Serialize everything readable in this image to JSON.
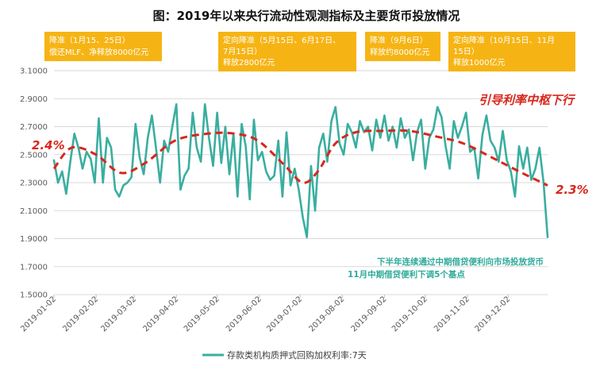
{
  "chart_data": {
    "type": "line",
    "title": "图：2019年以来央行流动性观测指标及主要货币投放情况",
    "ylim": [
      1.5,
      3.1
    ],
    "yticks": [
      "3.1000",
      "2.9000",
      "2.7000",
      "2.5000",
      "2.3000",
      "2.1000",
      "1.9000",
      "1.7000",
      "1.5000"
    ],
    "xticks": [
      "2019-01-02",
      "2019-02-02",
      "2019-03-02",
      "2019-04-02",
      "2019-05-02",
      "2019-06-02",
      "2019-07-02",
      "2019-08-02",
      "2019-09-02",
      "2019-10-02",
      "2019-11-02",
      "2019-12-02"
    ],
    "grid": true,
    "legend": {
      "position": "bottom",
      "label": "存款类机构质押式回购加权利率:7天"
    },
    "series": [
      {
        "name": "存款类机构质押式回购加权利率:7天",
        "color": "#3aaea0",
        "x": [
          "2019-01-02",
          "2019-01-05",
          "2019-01-08",
          "2019-01-11",
          "2019-01-14",
          "2019-01-17",
          "2019-01-20",
          "2019-01-23",
          "2019-01-26",
          "2019-01-29",
          "2019-02-01",
          "2019-02-04",
          "2019-02-07",
          "2019-02-10",
          "2019-02-13",
          "2019-02-16",
          "2019-02-19",
          "2019-02-22",
          "2019-02-25",
          "2019-02-28",
          "2019-03-03",
          "2019-03-06",
          "2019-03-09",
          "2019-03-12",
          "2019-03-15",
          "2019-03-18",
          "2019-03-21",
          "2019-03-24",
          "2019-03-27",
          "2019-03-30",
          "2019-04-02",
          "2019-04-05",
          "2019-04-08",
          "2019-04-11",
          "2019-04-14",
          "2019-04-17",
          "2019-04-20",
          "2019-04-23",
          "2019-04-26",
          "2019-04-29",
          "2019-05-02",
          "2019-05-05",
          "2019-05-08",
          "2019-05-11",
          "2019-05-14",
          "2019-05-17",
          "2019-05-20",
          "2019-05-23",
          "2019-05-26",
          "2019-05-29",
          "2019-06-01",
          "2019-06-04",
          "2019-06-07",
          "2019-06-10",
          "2019-06-13",
          "2019-06-16",
          "2019-06-19",
          "2019-06-22",
          "2019-06-25",
          "2019-06-28",
          "2019-07-01",
          "2019-07-04",
          "2019-07-07",
          "2019-07-10",
          "2019-07-13",
          "2019-07-16",
          "2019-07-19",
          "2019-07-22",
          "2019-07-25",
          "2019-07-28",
          "2019-07-31",
          "2019-08-03",
          "2019-08-06",
          "2019-08-09",
          "2019-08-12",
          "2019-08-15",
          "2019-08-18",
          "2019-08-21",
          "2019-08-24",
          "2019-08-27",
          "2019-08-30",
          "2019-09-02",
          "2019-09-05",
          "2019-09-08",
          "2019-09-11",
          "2019-09-14",
          "2019-09-17",
          "2019-09-20",
          "2019-09-23",
          "2019-09-26",
          "2019-09-29",
          "2019-10-02",
          "2019-10-05",
          "2019-10-08",
          "2019-10-11",
          "2019-10-14",
          "2019-10-17",
          "2019-10-20",
          "2019-10-23",
          "2019-10-26",
          "2019-10-29",
          "2019-11-01",
          "2019-11-04",
          "2019-11-07",
          "2019-11-10",
          "2019-11-13",
          "2019-11-16",
          "2019-11-19",
          "2019-11-22",
          "2019-11-25",
          "2019-11-28",
          "2019-12-01",
          "2019-12-04",
          "2019-12-07",
          "2019-12-10",
          "2019-12-13",
          "2019-12-16",
          "2019-12-19",
          "2019-12-22",
          "2019-12-25",
          "2019-12-28",
          "2019-12-31"
        ],
        "values": [
          2.46,
          2.3,
          2.38,
          2.22,
          2.45,
          2.65,
          2.55,
          2.4,
          2.52,
          2.47,
          2.3,
          2.76,
          2.3,
          2.62,
          2.55,
          2.25,
          2.2,
          2.28,
          2.3,
          2.34,
          2.72,
          2.48,
          2.36,
          2.62,
          2.78,
          2.55,
          2.3,
          2.6,
          2.52,
          2.7,
          2.86,
          2.25,
          2.35,
          2.4,
          2.8,
          2.55,
          2.45,
          2.86,
          2.62,
          2.42,
          2.8,
          2.44,
          2.7,
          2.36,
          2.65,
          2.2,
          2.72,
          2.56,
          2.18,
          2.75,
          2.46,
          2.52,
          2.38,
          2.32,
          2.35,
          2.6,
          2.2,
          2.66,
          2.28,
          2.4,
          2.25,
          2.05,
          1.91,
          2.42,
          2.1,
          2.55,
          2.65,
          2.45,
          2.74,
          2.84,
          2.58,
          2.5,
          2.72,
          2.66,
          2.55,
          2.74,
          2.66,
          2.7,
          2.53,
          2.75,
          2.62,
          2.78,
          2.6,
          2.7,
          2.55,
          2.76,
          2.62,
          2.68,
          2.46,
          2.66,
          2.75,
          2.4,
          2.62,
          2.68,
          2.84,
          2.77,
          2.56,
          2.4,
          2.74,
          2.62,
          2.7,
          2.8,
          2.52,
          2.55,
          2.33,
          2.64,
          2.78,
          2.6,
          2.55,
          2.45,
          2.67,
          2.46,
          2.38,
          2.2,
          2.56,
          2.4,
          2.55,
          2.32,
          2.4,
          2.55,
          2.3,
          1.91
        ]
      }
    ],
    "trend": {
      "color": "#d9261c",
      "style": "dashed",
      "x": [
        "2019-01-02",
        "2019-01-15",
        "2019-02-02",
        "2019-02-20",
        "2019-03-10",
        "2019-04-01",
        "2019-04-25",
        "2019-05-15",
        "2019-06-01",
        "2019-06-20",
        "2019-07-04",
        "2019-07-15",
        "2019-07-28",
        "2019-08-12",
        "2019-09-01",
        "2019-09-20",
        "2019-10-10",
        "2019-10-30",
        "2019-11-20",
        "2019-12-10",
        "2019-12-31"
      ],
      "values": [
        2.4,
        2.55,
        2.5,
        2.37,
        2.44,
        2.6,
        2.65,
        2.65,
        2.6,
        2.43,
        2.3,
        2.38,
        2.58,
        2.66,
        2.67,
        2.67,
        2.63,
        2.58,
        2.48,
        2.38,
        2.28
      ]
    },
    "annotations": {
      "trend_start_label": "2.4%",
      "trend_end_label": "2.3%",
      "trend_caption": "引导利率中枢下行",
      "note_line1": "下半年连续通过中期借贷便利向市场投放货币",
      "note_line2": "11月中期借贷便利下调5个基点",
      "boxes": [
        {
          "line1": "降准（1月15、25日）",
          "line2": "偿还MLF、净释放8000亿元",
          "line3": ""
        },
        {
          "line1": "定向降准（5月15日、6月17日、",
          "line2": "7月15日）",
          "line3": "释放2800亿元"
        },
        {
          "line1": "降准（9月6日）",
          "line2": "释放约8000亿元",
          "line3": ""
        },
        {
          "line1": "定向降准（10月15日、11月",
          "line2": "15日）",
          "line3": "释放1000亿元"
        }
      ]
    }
  }
}
